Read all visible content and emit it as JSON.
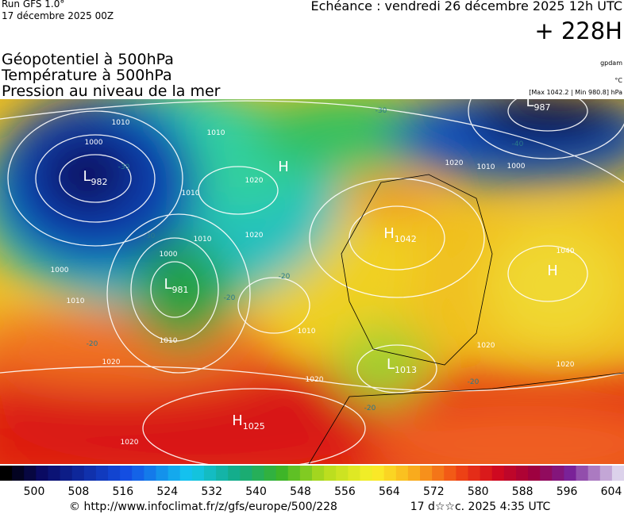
{
  "header": {
    "run": "Run GFS 1.0°",
    "run_date": "17 décembre 2025 00Z",
    "valid": "Echéance : vendredi 26 décembre 2025 12h UTC",
    "lead": "+ 228H",
    "titles": [
      "Géopotentiel à 500hPa",
      "Température à 500hPa",
      "Pression au niveau de la mer"
    ],
    "units": [
      "gpdam",
      "°C",
      "[Max 1042.2 | Min 980.8] hPa"
    ]
  },
  "centers": [
    {
      "letter": "L",
      "value": "982"
    },
    {
      "letter": "H",
      "value": ""
    },
    {
      "letter": "L",
      "value": "981"
    },
    {
      "letter": "H",
      "value": "1042"
    },
    {
      "letter": "H",
      "value": ""
    },
    {
      "letter": "L",
      "value": "987"
    },
    {
      "letter": "L",
      "value": "1013"
    },
    {
      "letter": "H",
      "value": "1025"
    }
  ],
  "isobar_labels": [
    "1010",
    "1000",
    "1010",
    "1010",
    "1020",
    "1020",
    "1010",
    "1000",
    "1010",
    "1000",
    "1010",
    "1000",
    "1020",
    "1020",
    "1020",
    "1010",
    "1010",
    "1020",
    "1040",
    "1020",
    "1020"
  ],
  "temperature_labels": [
    "-30",
    "-40",
    "-30",
    "-30",
    "-20",
    "-20",
    "-20",
    "-20",
    "-20"
  ],
  "colorbar": {
    "ticks": [
      500,
      508,
      516,
      524,
      532,
      540,
      548,
      556,
      564,
      572,
      580,
      588,
      596,
      604
    ]
  },
  "footer": {
    "source": "© http://www.infoclimat.fr/z/gfs/europe/500/228",
    "generated": "17 d☆☆c. 2025  4:35 UTC"
  }
}
